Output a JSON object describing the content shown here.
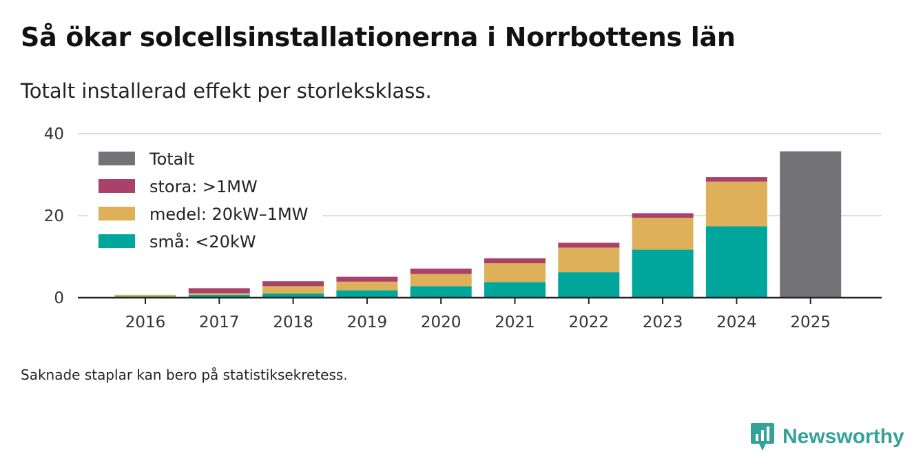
{
  "title": "Så ökar solcellsinstallationerna i Norrbottens län",
  "subtitle": "Totalt installerad effekt per storleksklass.",
  "note": "Saknade staplar kan bero på statistiksekretess.",
  "brand": {
    "name": "Newsworthy",
    "color": "#35a29a"
  },
  "colors": {
    "smal": "#00a59b",
    "medel": "#deb05a",
    "stora": "#a8426a",
    "total": "#737276",
    "grid": "#dddddd",
    "axis": "#222222"
  },
  "chart_data": {
    "type": "bar",
    "stacked": true,
    "title": "Så ökar solcellsinstallationerna i Norrbottens län",
    "subtitle": "Totalt installerad effekt per storleksklass.",
    "xlabel": "",
    "ylabel": "",
    "ylim": [
      0,
      40
    ],
    "yticks": [
      0,
      20,
      40
    ],
    "grid": true,
    "legend_position": "top-left",
    "categories": [
      "2016",
      "2017",
      "2018",
      "2019",
      "2020",
      "2021",
      "2022",
      "2023",
      "2024",
      "2025"
    ],
    "series": [
      {
        "name": "små: <20kW",
        "key": "smal",
        "values": [
          0.3,
          0.7,
          1.0,
          1.8,
          2.8,
          3.8,
          6.2,
          11.7,
          17.4,
          null
        ]
      },
      {
        "name": "medel: 20kW–1MW",
        "key": "medel",
        "values": [
          0.4,
          0.4,
          1.8,
          2.1,
          3.0,
          4.6,
          6.0,
          7.8,
          10.9,
          null
        ]
      },
      {
        "name": "stora: >1MW",
        "key": "stora",
        "values": [
          0.0,
          1.2,
          1.2,
          1.2,
          1.3,
          1.2,
          1.2,
          1.1,
          1.1,
          null
        ]
      },
      {
        "name": "Totalt",
        "key": "total",
        "values": [
          null,
          null,
          null,
          null,
          null,
          null,
          null,
          null,
          null,
          35.7
        ]
      }
    ],
    "legend": [
      "Totalt",
      "stora: >1MW",
      "medel: 20kW–1MW",
      "små: <20kW"
    ]
  }
}
